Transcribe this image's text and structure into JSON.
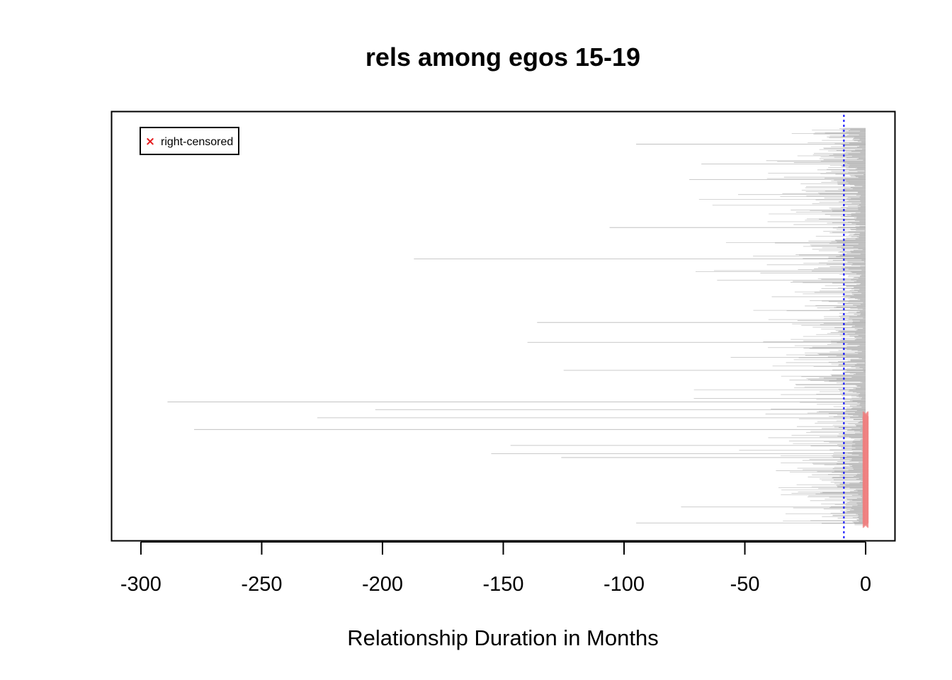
{
  "chart_data": {
    "type": "segment",
    "title": "rels among egos 15-19",
    "xlabel": "Relationship Duration in Months",
    "ylabel": "",
    "xlim": [
      -312,
      12
    ],
    "xticks": [
      -300,
      -250,
      -200,
      -150,
      -100,
      -50,
      0
    ],
    "xtick_labels": [
      "-300",
      "-250",
      "-200",
      "-150",
      "-100",
      "-50",
      "0"
    ],
    "y_axis_shown": false,
    "reference_line": {
      "x": -9,
      "style": "dotted",
      "color": "#0000ff"
    },
    "legend": {
      "position": "top-left",
      "entries": [
        {
          "label": "right-censored",
          "marker": "x",
          "color": "#e41a1c"
        }
      ]
    },
    "segment_color": "#000000",
    "censored_color": "#f08080",
    "notable_segments": [
      {
        "start": -95,
        "end": 0
      },
      {
        "start": -68,
        "end": 0
      },
      {
        "start": -73,
        "end": 0
      },
      {
        "start": -106,
        "end": 0
      },
      {
        "start": -187,
        "end": 0
      },
      {
        "start": -136,
        "end": 0
      },
      {
        "start": -140,
        "end": 0
      },
      {
        "start": -125,
        "end": 0
      },
      {
        "start": -289,
        "end": 0,
        "censored": true
      },
      {
        "start": -203,
        "end": 0,
        "censored": true
      },
      {
        "start": -227,
        "end": 0,
        "censored": true
      },
      {
        "start": -278,
        "end": 0,
        "censored": true
      },
      {
        "start": -147,
        "end": 0,
        "censored": true
      },
      {
        "start": -155,
        "end": 0,
        "censored": true
      },
      {
        "start": -126,
        "end": 0,
        "censored": true
      },
      {
        "start": -95,
        "end": 0,
        "censored": true
      }
    ]
  }
}
